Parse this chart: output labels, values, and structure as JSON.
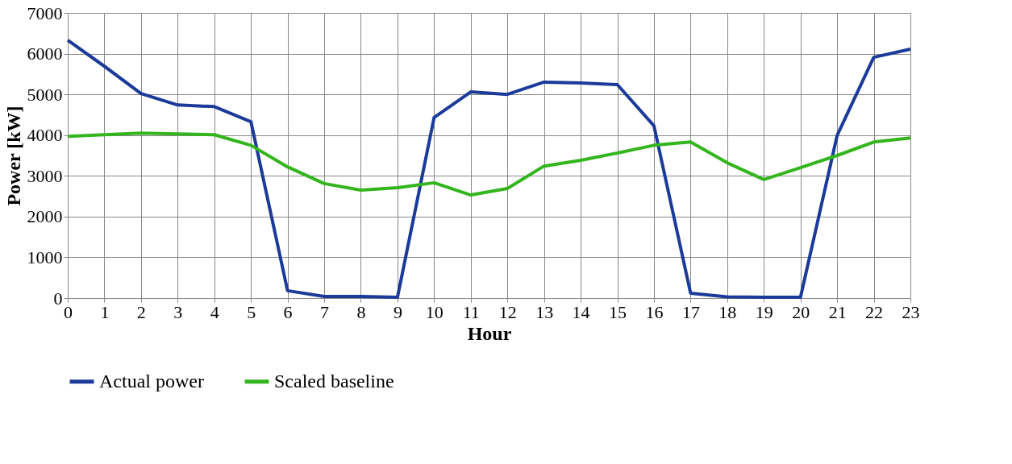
{
  "chart_data": {
    "type": "line",
    "xlabel": "Hour",
    "ylabel": "Power   [kW]",
    "x": [
      0,
      1,
      2,
      3,
      4,
      5,
      6,
      7,
      8,
      9,
      10,
      11,
      12,
      13,
      14,
      15,
      16,
      17,
      18,
      19,
      20,
      21,
      22,
      23
    ],
    "xlim": [
      0,
      23
    ],
    "xticks": [
      0,
      1,
      2,
      3,
      4,
      5,
      6,
      7,
      8,
      9,
      10,
      11,
      12,
      13,
      14,
      15,
      16,
      17,
      18,
      19,
      20,
      21,
      22,
      23
    ],
    "ylim": [
      0,
      7000
    ],
    "yticks": [
      0,
      1000,
      2000,
      3000,
      4000,
      5000,
      6000,
      7000
    ],
    "grid": true,
    "legend": "bottom",
    "marker": "none",
    "line_style": "solid",
    "series": [
      {
        "name": "Actual power",
        "color": "#1b3a9a",
        "values": [
          6330,
          5690,
          5020,
          4740,
          4700,
          4330,
          180,
          40,
          40,
          20,
          4430,
          5060,
          5000,
          5300,
          5280,
          5240,
          4230,
          120,
          30,
          20,
          20,
          3990,
          5910,
          6110
        ]
      },
      {
        "name": "Scaled baseline",
        "color": "#33b51e",
        "values": [
          3970,
          4010,
          4050,
          4030,
          4010,
          3750,
          3220,
          2810,
          2650,
          2710,
          2830,
          2530,
          2690,
          3240,
          3380,
          3560,
          3750,
          3830,
          3320,
          2910,
          3200,
          3500,
          3830,
          3930
        ]
      }
    ]
  }
}
